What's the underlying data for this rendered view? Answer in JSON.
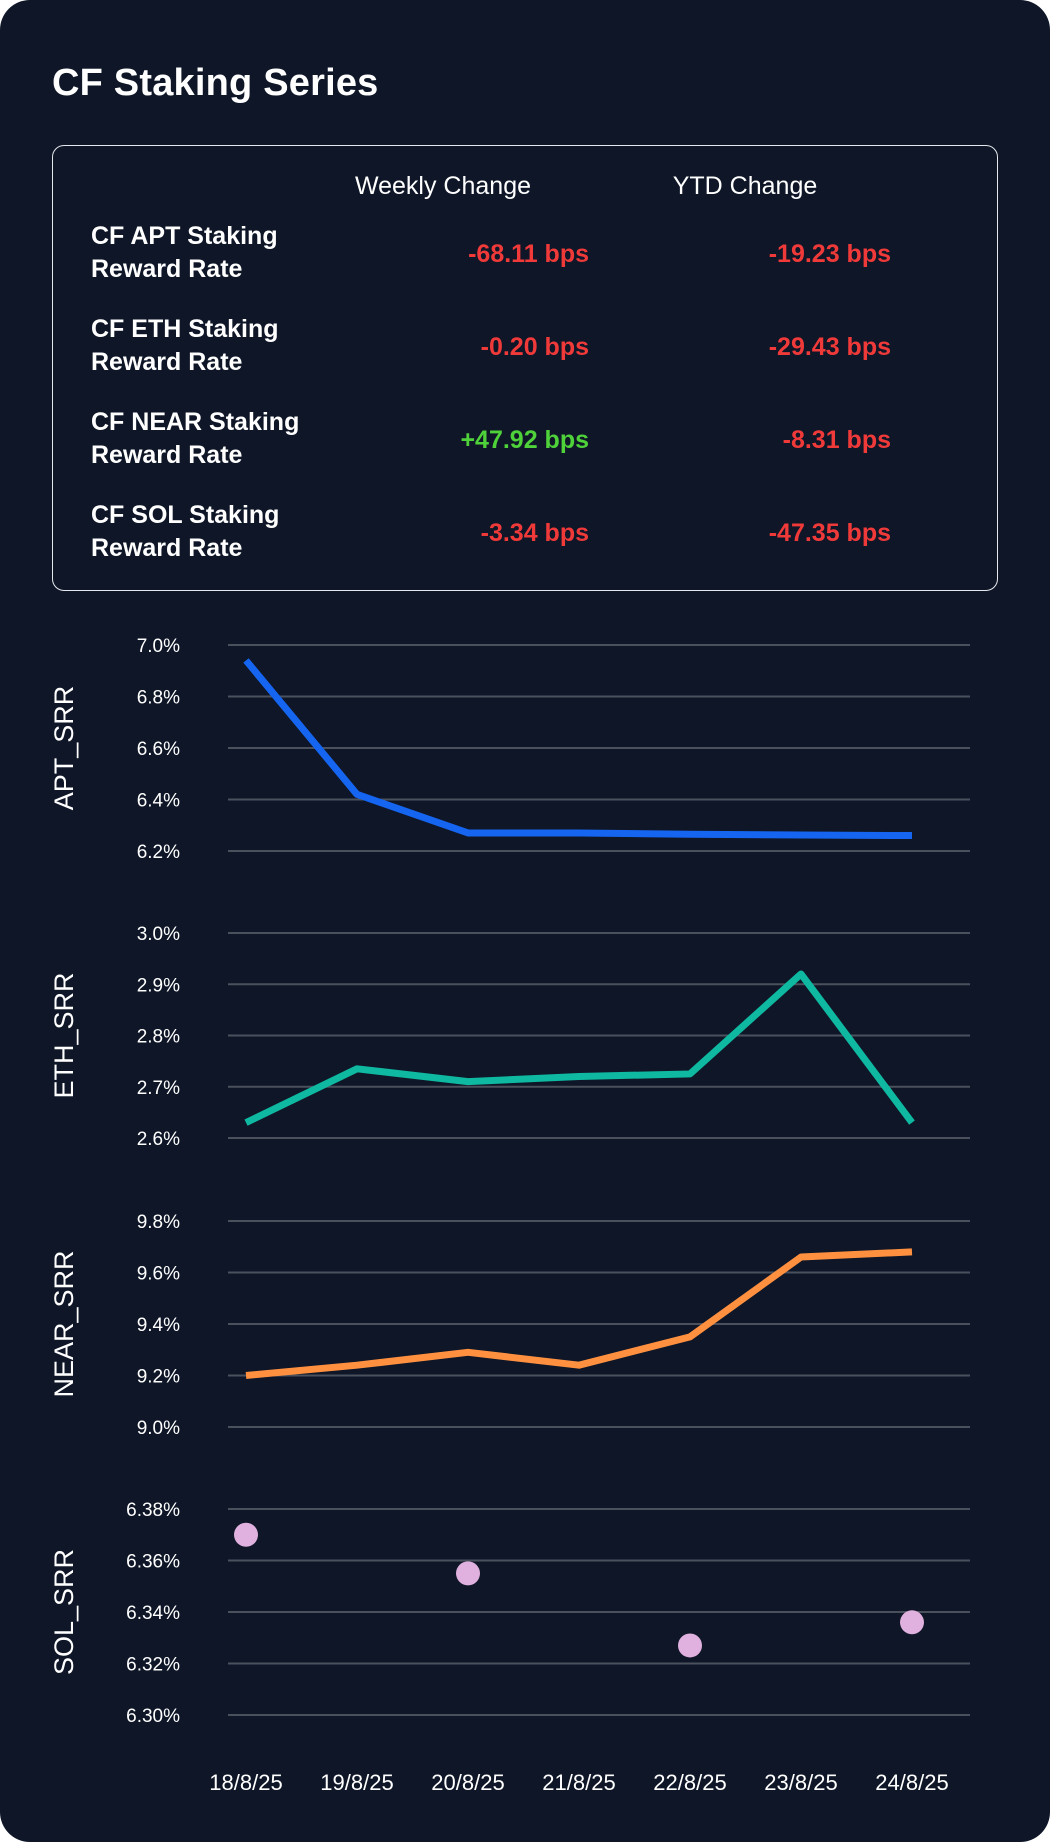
{
  "title": "CF Staking Series",
  "colors": {
    "background": "#0e1627",
    "negative": "#f03a3a",
    "positive": "#4fd13a",
    "grid": "#4a505c"
  },
  "summary": {
    "headers": {
      "weekly": "Weekly Change",
      "ytd": "YTD Change"
    },
    "rows": [
      {
        "label_line1": "CF APT Staking",
        "label_line2": "Reward Rate",
        "weekly": "-68.11 bps",
        "weekly_sign": "negative",
        "ytd": "-19.23 bps",
        "ytd_sign": "negative"
      },
      {
        "label_line1": "CF ETH Staking",
        "label_line2": "Reward Rate",
        "weekly": "-0.20 bps",
        "weekly_sign": "negative",
        "ytd": "-29.43 bps",
        "ytd_sign": "negative"
      },
      {
        "label_line1": "CF NEAR Staking",
        "label_line2": "Reward Rate",
        "weekly": "+47.92 bps",
        "weekly_sign": "positive",
        "ytd": "-8.31 bps",
        "ytd_sign": "negative"
      },
      {
        "label_line1": "CF SOL Staking",
        "label_line2": "Reward Rate",
        "weekly": "-3.34 bps",
        "weekly_sign": "negative",
        "ytd": "-47.35 bps",
        "ytd_sign": "negative"
      }
    ]
  },
  "chart_data": [
    {
      "type": "line",
      "ylabel": "APT_SRR",
      "color": "#1565f0",
      "x": [
        "18/8/25",
        "19/8/25",
        "20/8/25",
        "21/8/25",
        "22/8/25",
        "23/8/25",
        "24/8/25"
      ],
      "values": [
        6.94,
        6.42,
        6.27,
        6.27,
        6.265,
        6.262,
        6.26
      ],
      "ylim": [
        6.2,
        7.0
      ],
      "yticks": [
        6.2,
        6.4,
        6.6,
        6.8,
        7.0
      ],
      "ytick_labels": [
        "6.2%",
        "6.4%",
        "6.6%",
        "6.8%",
        "7.0%"
      ]
    },
    {
      "type": "line",
      "ylabel": "ETH_SRR",
      "color": "#0fb8a0",
      "x": [
        "18/8/25",
        "19/8/25",
        "20/8/25",
        "21/8/25",
        "22/8/25",
        "23/8/25",
        "24/8/25"
      ],
      "values": [
        2.63,
        2.735,
        2.71,
        2.72,
        2.725,
        2.92,
        2.63
      ],
      "ylim": [
        2.6,
        3.0
      ],
      "yticks": [
        2.6,
        2.7,
        2.8,
        2.9,
        3.0
      ],
      "ytick_labels": [
        "2.6%",
        "2.7%",
        "2.8%",
        "2.9%",
        "3.0%"
      ]
    },
    {
      "type": "line",
      "ylabel": "NEAR_SRR",
      "color": "#ff9040",
      "x": [
        "18/8/25",
        "19/8/25",
        "20/8/25",
        "21/8/25",
        "22/8/25",
        "23/8/25",
        "24/8/25"
      ],
      "values": [
        9.2,
        9.24,
        9.29,
        9.24,
        9.35,
        9.66,
        9.68
      ],
      "ylim": [
        9.0,
        9.8
      ],
      "yticks": [
        9.0,
        9.2,
        9.4,
        9.6,
        9.8
      ],
      "ytick_labels": [
        "9.0%",
        "9.2%",
        "9.4%",
        "9.6%",
        "9.8%"
      ]
    },
    {
      "type": "scatter",
      "ylabel": "SOL_SRR",
      "color": "#e0b0de",
      "x": [
        "18/8/25",
        "20/8/25",
        "22/8/25",
        "24/8/25"
      ],
      "values": [
        6.37,
        6.355,
        6.327,
        6.336
      ],
      "ylim": [
        6.3,
        6.38
      ],
      "yticks": [
        6.3,
        6.32,
        6.34,
        6.36,
        6.38
      ],
      "ytick_labels": [
        "6.30%",
        "6.32%",
        "6.34%",
        "6.36%",
        "6.38%"
      ]
    }
  ],
  "x_axis": {
    "categories": [
      "18/8/25",
      "19/8/25",
      "20/8/25",
      "21/8/25",
      "22/8/25",
      "23/8/25",
      "24/8/25"
    ]
  }
}
